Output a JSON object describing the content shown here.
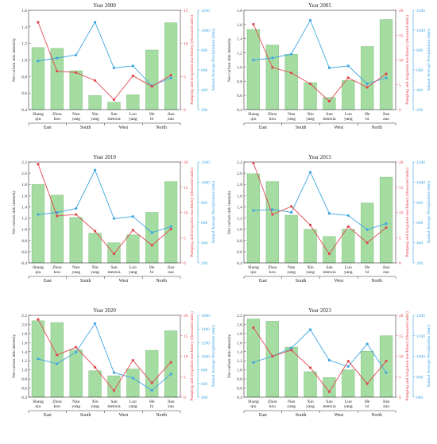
{
  "colors": {
    "bar": "#a5dca2",
    "bar_edge": "#7cc07a",
    "carbon": "#e0474f",
    "precip": "#3ea6e2",
    "left_axis": "#333333"
  },
  "chart_data": [
    {
      "type": "bar",
      "title": "Year 2000",
      "categories": [
        "Shang qiu",
        "Zhou kou",
        "Nan yang",
        "Xin yang",
        "San menxia",
        "Luo yang",
        "He bi",
        "Jiao zuo"
      ],
      "groups": [
        {
          "label": "East",
          "span": [
            0,
            1
          ]
        },
        {
          "label": "South",
          "span": [
            2,
            3
          ]
        },
        {
          "label": "West",
          "span": [
            4,
            5
          ]
        },
        {
          "label": "North",
          "span": [
            6,
            7
          ]
        }
      ],
      "ylabel_left": "Net carbon sink intensity",
      "ylabel_mid": "Pumping and irrigation machinery (thousand units)",
      "ylabel_right": "Annual Average Precipitation (mm)",
      "ylim_left": [
        0.4,
        1.6
      ],
      "yticks_left": [
        0.4,
        0.6,
        0.8,
        1.0,
        1.2,
        1.4,
        1.6
      ],
      "ylim_mid": [
        0,
        15
      ],
      "yticks_mid": [
        0,
        5,
        10,
        15
      ],
      "ylim_right": [
        200,
        1200
      ],
      "yticks_right": [
        200,
        400,
        600,
        800,
        1000,
        1200
      ],
      "series": [
        {
          "name": "Net carbon sink intensity",
          "axis": "left",
          "kind": "bar",
          "values": [
            1.15,
            1.14,
            0.87,
            0.57,
            0.49,
            0.58,
            1.12,
            1.45
          ]
        },
        {
          "name": "Pumping and irrigation machinery",
          "axis": "mid",
          "kind": "line",
          "values": [
            13.2,
            5.8,
            5.6,
            4.4,
            1.5,
            5.1,
            3.5,
            5.2
          ]
        },
        {
          "name": "Annual Average Precipitation",
          "axis": "right",
          "kind": "line",
          "values": [
            690,
            720,
            750,
            1080,
            620,
            640,
            440,
            520
          ]
        }
      ]
    },
    {
      "type": "bar",
      "title": "Year 2005",
      "categories": [
        "Shang qiu",
        "Zhou kou",
        "Nan yang",
        "Xin yang",
        "San menxia",
        "Luo yang",
        "He bi",
        "Jiao zuo"
      ],
      "groups": [
        {
          "label": "East",
          "span": [
            0,
            1
          ]
        },
        {
          "label": "South",
          "span": [
            2,
            3
          ]
        },
        {
          "label": "West",
          "span": [
            4,
            5
          ]
        },
        {
          "label": "North",
          "span": [
            6,
            7
          ]
        }
      ],
      "ylabel_left": "Net carbon sink intensity",
      "ylabel_mid": "Pumping and irrigation machinery (thousand units)",
      "ylabel_right": "Annual Average Precipitation (mm)",
      "ylim_left": [
        0.4,
        1.8
      ],
      "yticks_left": [
        0.4,
        0.6,
        0.8,
        1.0,
        1.2,
        1.4,
        1.6,
        1.8
      ],
      "ylim_mid": [
        0,
        20
      ],
      "yticks_mid": [
        0,
        5,
        10,
        15,
        20
      ],
      "ylim_right": [
        200,
        1200
      ],
      "yticks_right": [
        200,
        400,
        600,
        800,
        1000,
        1200
      ],
      "series": [
        {
          "name": "Net carbon sink intensity",
          "axis": "left",
          "kind": "bar",
          "values": [
            1.53,
            1.31,
            1.18,
            0.78,
            0.57,
            0.81,
            1.29,
            1.67
          ]
        },
        {
          "name": "Pumping and irrigation machinery",
          "axis": "mid",
          "kind": "line",
          "values": [
            17.2,
            8.5,
            7.4,
            5.2,
            1.7,
            6.4,
            4.5,
            7.2
          ]
        },
        {
          "name": "Annual Average Precipitation",
          "axis": "right",
          "kind": "line",
          "values": [
            700,
            720,
            760,
            1100,
            620,
            640,
            460,
            520
          ]
        }
      ]
    },
    {
      "type": "bar",
      "title": "Year 2010",
      "categories": [
        "Shang qiu",
        "Zhou kou",
        "Nan yang",
        "Xin yang",
        "San menxia",
        "Luo yang",
        "He bi",
        "Jiao zuo"
      ],
      "groups": [
        {
          "label": "East",
          "span": [
            0,
            1
          ]
        },
        {
          "label": "South",
          "span": [
            2,
            3
          ]
        },
        {
          "label": "West",
          "span": [
            4,
            5
          ]
        },
        {
          "label": "North",
          "span": [
            6,
            7
          ]
        }
      ],
      "ylabel_left": "Net carbon sink intensity",
      "ylabel_mid": "Pumping and irrigation machinery (thousand units)",
      "ylabel_right": "Annual Average Precipitation (mm)",
      "ylim_left": [
        0.4,
        2.2
      ],
      "yticks_left": [
        0.4,
        0.6,
        0.8,
        1.0,
        1.2,
        1.4,
        1.6,
        1.8,
        2.0,
        2.2
      ],
      "ylim_mid": [
        0,
        20
      ],
      "yticks_mid": [
        0,
        5,
        10,
        15,
        20
      ],
      "ylim_right": [
        200,
        1200
      ],
      "yticks_right": [
        200,
        400,
        600,
        800,
        1000,
        1200
      ],
      "series": [
        {
          "name": "Net carbon sink intensity",
          "axis": "left",
          "kind": "bar",
          "values": [
            1.8,
            1.61,
            1.21,
            0.93,
            0.76,
            0.9,
            1.3,
            1.85
          ]
        },
        {
          "name": "Pumping and irrigation machinery",
          "axis": "mid",
          "kind": "line",
          "values": [
            19.6,
            9.3,
            9.6,
            6.3,
            1.8,
            6.5,
            3.5,
            6.7
          ]
        },
        {
          "name": "Annual Average Precipitation",
          "axis": "right",
          "kind": "line",
          "values": [
            680,
            700,
            740,
            1120,
            640,
            660,
            500,
            560
          ]
        }
      ]
    },
    {
      "type": "bar",
      "title": "Year 2015",
      "categories": [
        "Shang qiu",
        "Zhou kou",
        "Nan yang",
        "Xin yang",
        "San menxia",
        "Luo yang",
        "He bi",
        "Jiao zuo"
      ],
      "groups": [
        {
          "label": "East",
          "span": [
            0,
            1
          ]
        },
        {
          "label": "South",
          "span": [
            2,
            3
          ]
        },
        {
          "label": "West",
          "span": [
            4,
            5
          ]
        },
        {
          "label": "North",
          "span": [
            6,
            7
          ]
        }
      ],
      "ylabel_left": "Net carbon sink intensity",
      "ylabel_mid": "Pumping and irrigation machinery (thousand units)",
      "ylabel_right": "Annual Average Precipitation (mm)",
      "ylim_left": [
        0.4,
        2.2
      ],
      "yticks_left": [
        0.4,
        0.6,
        0.8,
        1.0,
        1.2,
        1.4,
        1.6,
        1.8,
        2.0,
        2.2
      ],
      "ylim_mid": [
        0,
        20
      ],
      "yticks_mid": [
        0,
        5,
        10,
        15,
        20
      ],
      "ylim_right": [
        200,
        1200
      ],
      "yticks_right": [
        200,
        400,
        600,
        800,
        1000,
        1200
      ],
      "series": [
        {
          "name": "Net carbon sink intensity",
          "axis": "left",
          "kind": "bar",
          "values": [
            1.99,
            1.85,
            1.25,
            1.0,
            0.87,
            1.0,
            1.47,
            1.93
          ]
        },
        {
          "name": "Pumping and irrigation machinery",
          "axis": "mid",
          "kind": "line",
          "values": [
            19.8,
            9.6,
            11.2,
            7.5,
            1.8,
            7.2,
            4.0,
            7.0
          ]
        },
        {
          "name": "Annual Average Precipitation",
          "axis": "right",
          "kind": "line",
          "values": [
            720,
            730,
            700,
            1100,
            690,
            670,
            530,
            590
          ]
        }
      ]
    },
    {
      "type": "bar",
      "title": "Year 2020",
      "categories": [
        "Shang qiu",
        "Zhou kou",
        "Nan yang",
        "Xin yang",
        "San menxia",
        "Luo yang",
        "He bi",
        "Jiao zuo"
      ],
      "groups": [
        {
          "label": "East",
          "span": [
            0,
            1
          ]
        },
        {
          "label": "South",
          "span": [
            2,
            3
          ]
        },
        {
          "label": "West",
          "span": [
            4,
            5
          ]
        },
        {
          "label": "North",
          "span": [
            6,
            7
          ]
        }
      ],
      "ylabel_left": "Net carbon sink intensity",
      "ylabel_mid": "Pumping and irrigation machinery (thousand units)",
      "ylabel_right": "Annual Average Precipitation (mm)",
      "ylim_left": [
        0.4,
        2.2
      ],
      "yticks_left": [
        0.4,
        0.6,
        0.8,
        1.0,
        1.2,
        1.4,
        1.6,
        1.8,
        2.0,
        2.2
      ],
      "ylim_mid": [
        0,
        20
      ],
      "yticks_mid": [
        0,
        5,
        10,
        15,
        20
      ],
      "ylim_right": [
        400,
        1600
      ],
      "yticks_right": [
        400,
        600,
        800,
        1000,
        1200,
        1400,
        1600
      ],
      "series": [
        {
          "name": "Net carbon sink intensity",
          "axis": "left",
          "kind": "bar",
          "values": [
            2.08,
            2.04,
            1.44,
            0.98,
            0.87,
            1.02,
            1.43,
            1.86
          ]
        },
        {
          "name": "Pumping and irrigation machinery",
          "axis": "mid",
          "kind": "line",
          "values": [
            19.0,
            10.3,
            12.2,
            7.3,
            1.6,
            9.0,
            3.5,
            8.5
          ]
        },
        {
          "name": "Annual Average Precipitation",
          "axis": "right",
          "kind": "line",
          "values": [
            960,
            890,
            1060,
            1480,
            760,
            680,
            500,
            740
          ]
        }
      ]
    },
    {
      "type": "bar",
      "title": "Year 2023",
      "categories": [
        "Shang qiu",
        "Zhou kou",
        "Nan yang",
        "Xin yang",
        "San menxia",
        "Luo yang",
        "He bi",
        "Jiao zuo"
      ],
      "groups": [
        {
          "label": "East",
          "span": [
            0,
            1
          ]
        },
        {
          "label": "South",
          "span": [
            2,
            3
          ]
        },
        {
          "label": "West",
          "span": [
            4,
            5
          ]
        },
        {
          "label": "North",
          "span": [
            6,
            7
          ]
        }
      ],
      "ylabel_left": "Net carbon sink intensity",
      "ylabel_mid": "Pumping and irrigation machinery (thousand units)",
      "ylabel_right": "Annual Average Precipitation (mm)",
      "ylim_left": [
        0.4,
        2.2
      ],
      "yticks_left": [
        0.4,
        0.6,
        0.8,
        1.0,
        1.2,
        1.4,
        1.6,
        1.8,
        2.0,
        2.2
      ],
      "ylim_mid": [
        0,
        20
      ],
      "yticks_mid": [
        0,
        5,
        10,
        15,
        20
      ],
      "ylim_right": [
        600,
        1400
      ],
      "yticks_right": [
        600,
        800,
        1000,
        1200,
        1400
      ],
      "series": [
        {
          "name": "Net carbon sink intensity",
          "axis": "left",
          "kind": "bar",
          "values": [
            2.12,
            2.07,
            1.5,
            0.96,
            0.83,
            1.0,
            1.41,
            1.75
          ]
        },
        {
          "name": "Pumping and irrigation machinery",
          "axis": "mid",
          "kind": "line",
          "values": [
            17.0,
            10.0,
            11.5,
            7.2,
            1.3,
            8.8,
            3.3,
            8.8
          ]
        },
        {
          "name": "Annual Average Precipitation",
          "axis": "right",
          "kind": "line",
          "values": [
            940,
            1000,
            1080,
            1260,
            960,
            900,
            1120,
            840
          ]
        }
      ]
    }
  ]
}
